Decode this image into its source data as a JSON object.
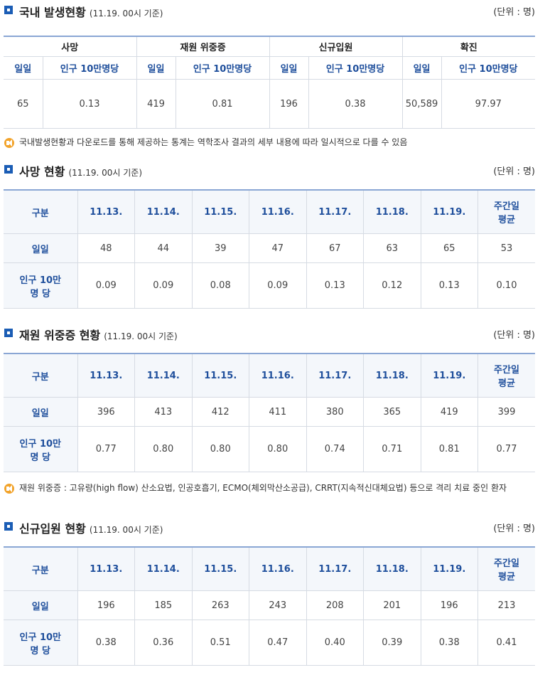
{
  "domestic": {
    "title": "국내 발생현황",
    "sub": "(11.19. 00시 기준)",
    "unit": "(단위 : 명)",
    "groups": [
      "사망",
      "재원 위중증",
      "신규입원",
      "확진"
    ],
    "col_daily": "일일",
    "col_per": "인구 10만명당",
    "values": [
      "65",
      "0.13",
      "419",
      "0.81",
      "196",
      "0.38",
      "50,589",
      "97.97"
    ]
  },
  "note1": "국내발생현황과 다운로드를 통해 제공하는 통계는 역학조사 결과의 세부 내용에 따라 일시적으로 다를 수 있음",
  "headers": [
    "구분",
    "11.13.",
    "11.14.",
    "11.15.",
    "11.16.",
    "11.17.",
    "11.18.",
    "11.19.",
    "주간일 평균"
  ],
  "row_daily": "일일",
  "row_per": "인구 10만 명 당",
  "death": {
    "title": "사망 현황",
    "sub": "(11.19. 00시 기준)",
    "unit": "(단위 : 명)",
    "daily": [
      "48",
      "44",
      "39",
      "47",
      "67",
      "63",
      "65",
      "53"
    ],
    "per": [
      "0.09",
      "0.09",
      "0.08",
      "0.09",
      "0.13",
      "0.12",
      "0.13",
      "0.10"
    ]
  },
  "severe": {
    "title": "재원 위중증 현황",
    "sub": "(11.19. 00시 기준)",
    "unit": "(단위 : 명)",
    "daily": [
      "396",
      "413",
      "412",
      "411",
      "380",
      "365",
      "419",
      "399"
    ],
    "per": [
      "0.77",
      "0.80",
      "0.80",
      "0.80",
      "0.74",
      "0.71",
      "0.81",
      "0.77"
    ]
  },
  "note2": "재원 위중증 : 고유량(high flow) 산소요법, 인공호흡기, ECMO(체외막산소공급), CRRT(지속적신대체요법) 등으로 격리 치료 중인 환자",
  "admission": {
    "title": "신규입원 현황",
    "sub": "(11.19. 00시 기준)",
    "unit": "(단위 : 명)",
    "daily": [
      "196",
      "185",
      "263",
      "243",
      "208",
      "201",
      "196",
      "213"
    ],
    "per": [
      "0.38",
      "0.36",
      "0.51",
      "0.47",
      "0.40",
      "0.39",
      "0.38",
      "0.41"
    ]
  },
  "colors": {
    "accent": "#1b5db5",
    "header_text": "#1f4f9c",
    "note_icon": "#f2a32a"
  }
}
